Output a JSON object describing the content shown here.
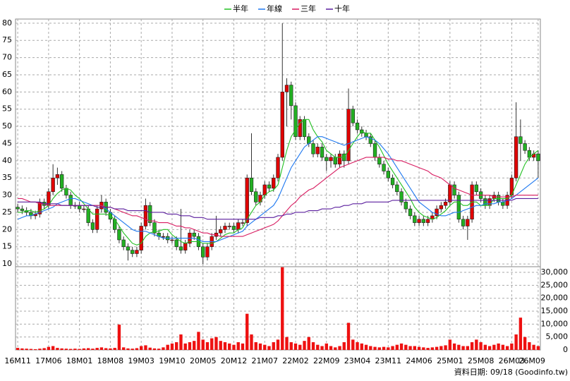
{
  "chart_data": {
    "type": "candlestick",
    "legend": {
      "position": "top"
    },
    "categories": [
      "16M11",
      null,
      null,
      null,
      null,
      null,
      null,
      "17M06",
      null,
      null,
      null,
      null,
      null,
      null,
      "18M01",
      null,
      null,
      null,
      null,
      null,
      null,
      "18M08",
      null,
      null,
      null,
      null,
      null,
      null,
      "19M03",
      null,
      null,
      null,
      null,
      null,
      null,
      "19M10",
      null,
      null,
      null,
      null,
      null,
      null,
      "20M05",
      null,
      null,
      null,
      null,
      null,
      null,
      "20M12",
      null,
      null,
      null,
      null,
      null,
      null,
      "21M07",
      null,
      null,
      null,
      null,
      null,
      null,
      "22M02",
      null,
      null,
      null,
      null,
      null,
      null,
      "22M09",
      null,
      null,
      null,
      null,
      null,
      null,
      "23M04",
      null,
      null,
      null,
      null,
      null,
      null,
      "23M11",
      null,
      null,
      null,
      null,
      null,
      null,
      "24M06",
      null,
      null,
      null,
      null,
      null,
      null,
      "25M01",
      null,
      null,
      null,
      null,
      null,
      null,
      "25M08",
      null,
      null,
      null,
      null,
      null,
      null,
      "26M03",
      null,
      null,
      null,
      null,
      null,
      "26M09"
    ],
    "open": [
      26.5,
      26,
      25.5,
      25,
      24,
      24.5,
      28,
      27,
      31,
      35,
      36,
      32,
      30,
      27,
      27,
      26,
      26,
      22,
      20,
      26,
      28,
      25,
      23,
      20,
      17,
      15,
      14,
      13,
      14,
      21,
      27,
      22,
      19,
      18,
      18,
      17,
      17,
      15,
      14,
      16,
      19,
      18,
      15,
      12,
      15,
      18,
      19,
      20,
      21,
      21,
      20,
      22,
      22,
      35,
      31,
      28,
      30,
      33,
      32,
      35,
      41,
      60,
      62,
      56,
      47,
      52,
      47,
      45,
      42,
      44,
      41,
      40,
      41,
      39,
      42,
      40,
      55,
      51,
      49,
      48,
      47,
      45,
      41,
      39,
      37,
      35,
      33,
      31,
      28,
      26,
      24,
      22,
      23,
      22,
      23,
      24,
      26,
      27,
      28,
      33,
      30,
      23,
      21,
      23,
      33,
      31,
      29,
      27,
      29,
      30,
      28,
      27,
      30,
      35,
      47,
      45,
      43,
      41,
      42
    ],
    "high": [
      27.5,
      27,
      26.5,
      26,
      25.5,
      29,
      29,
      32,
      39,
      38,
      37,
      33,
      31,
      28,
      28,
      27,
      27,
      23,
      27,
      30,
      29,
      26,
      24,
      21,
      18,
      16,
      15,
      15,
      22,
      29,
      28,
      23,
      20,
      19,
      19,
      18,
      18,
      26,
      17,
      20,
      20,
      19,
      16,
      16,
      19,
      24,
      21,
      22,
      22,
      22,
      23,
      23,
      36,
      48,
      32,
      31,
      34,
      34,
      36,
      42,
      80,
      64,
      63,
      57,
      53,
      53,
      48,
      46,
      45,
      45,
      42,
      42,
      42,
      43,
      43,
      61,
      56,
      52,
      50,
      49,
      48,
      46,
      42,
      40,
      38,
      36,
      34,
      32,
      29,
      27,
      25,
      24,
      24,
      24,
      25,
      27,
      28,
      29,
      34,
      34,
      31,
      24,
      24,
      34,
      34,
      32,
      30,
      30,
      31,
      31,
      29,
      31,
      36,
      57,
      52,
      46,
      44,
      43,
      43
    ],
    "low": [
      25,
      24.5,
      24,
      23,
      23,
      23.5,
      26,
      26,
      30,
      33,
      31,
      29,
      26,
      26,
      25,
      25,
      21,
      19,
      19,
      25,
      24,
      22,
      19,
      16,
      14,
      11,
      12,
      12,
      13,
      20,
      21,
      18,
      17,
      17,
      16,
      16,
      14,
      13,
      13,
      15,
      17,
      14,
      10,
      11,
      14,
      17,
      18,
      19,
      20,
      19,
      19,
      21,
      21,
      30,
      27,
      27,
      29,
      31,
      31,
      34,
      40,
      50,
      52,
      46,
      46,
      46,
      44,
      41,
      41,
      40,
      37,
      38,
      38,
      38,
      38,
      39,
      50,
      48,
      47,
      46,
      44,
      40,
      38,
      36,
      34,
      32,
      30,
      27,
      25,
      23,
      21,
      21,
      21,
      21,
      22,
      23,
      25,
      26,
      27,
      29,
      22,
      20,
      17,
      22,
      30,
      28,
      26,
      26,
      28,
      27,
      26,
      26,
      29,
      34,
      40,
      42,
      40,
      40,
      35
    ],
    "close": [
      26,
      25.5,
      25,
      24,
      24.5,
      28,
      27,
      31,
      35,
      36,
      32,
      30,
      27,
      27,
      26,
      26,
      22,
      20,
      26,
      28,
      25,
      23,
      20,
      17,
      15,
      14,
      13,
      14,
      21,
      27,
      22,
      19,
      18,
      18,
      17,
      17,
      15,
      14,
      16,
      19,
      18,
      15,
      12,
      15,
      18,
      19,
      20,
      21,
      21,
      20,
      22,
      22,
      35,
      31,
      28,
      30,
      33,
      32,
      35,
      41,
      60,
      62,
      56,
      47,
      52,
      47,
      45,
      42,
      44,
      41,
      40,
      41,
      39,
      42,
      40,
      55,
      51,
      49,
      48,
      47,
      45,
      41,
      39,
      37,
      35,
      33,
      31,
      28,
      26,
      24,
      22,
      23,
      22,
      23,
      24,
      26,
      27,
      28,
      33,
      30,
      23,
      21,
      23,
      33,
      31,
      29,
      27,
      29,
      30,
      28,
      27,
      30,
      35,
      47,
      45,
      43,
      41,
      42,
      40
    ],
    "up_color": "#e00000",
    "down_color": "#22b022",
    "series": [
      {
        "name": "半年",
        "color": "#22c022",
        "values": [
          25,
          25,
          25.5,
          25.5,
          25,
          25.5,
          26,
          27,
          29,
          30.5,
          31.5,
          32,
          31.5,
          30,
          29,
          27.5,
          26,
          24.5,
          24.5,
          24.5,
          24.5,
          24,
          23,
          21,
          19,
          17.5,
          16,
          15.5,
          16,
          18,
          19,
          19.5,
          19.5,
          20,
          20,
          18.5,
          17.5,
          16.5,
          16,
          16.5,
          16.5,
          16.5,
          16,
          16,
          16,
          16.5,
          17.5,
          18.5,
          19,
          19,
          20,
          20.5,
          23,
          25,
          27,
          28,
          30,
          31,
          31.5,
          33,
          38,
          43,
          47,
          49,
          51,
          52,
          52,
          49,
          47,
          45.5,
          43,
          42,
          41,
          41,
          41,
          43,
          45,
          47,
          48.5,
          48,
          48,
          46,
          44,
          41.5,
          39,
          37,
          35,
          33,
          31,
          29,
          26.5,
          25,
          24,
          23.5,
          23,
          23.5,
          24.5,
          25.5,
          27,
          28,
          28,
          27,
          27,
          28,
          28,
          27,
          27,
          27,
          29,
          29,
          29,
          29,
          30,
          33,
          36,
          39,
          41,
          42,
          43
        ]
      },
      {
        "name": "年線",
        "color": "#1e78f0",
        "values": [
          23,
          23.5,
          24,
          24,
          24.5,
          25,
          25.5,
          26,
          26.5,
          27.5,
          28,
          28.5,
          29,
          29,
          28.5,
          28,
          27.5,
          27,
          27,
          27,
          26,
          25,
          24,
          23,
          22,
          21,
          20,
          19.5,
          19.5,
          19.5,
          19,
          18.5,
          18,
          17.5,
          17.5,
          17.5,
          17.5,
          17.5,
          17.5,
          17.5,
          17.5,
          17,
          16.5,
          16.5,
          16.5,
          16.5,
          17,
          17.5,
          18,
          18.5,
          19,
          19.5,
          21,
          22,
          23,
          24,
          25,
          26,
          27,
          29,
          32,
          35,
          38,
          40,
          42,
          44,
          45,
          46,
          47,
          47,
          46.5,
          46,
          45.5,
          45,
          44.5,
          45,
          45.5,
          46,
          46.5,
          47,
          46.5,
          46,
          45,
          43.5,
          42,
          40,
          38,
          36,
          34,
          32,
          30,
          28,
          27,
          26,
          25,
          24.5,
          24,
          24,
          24.5,
          25,
          25,
          25.5,
          26,
          26.5,
          27,
          27,
          27.5,
          27.5,
          27.5,
          28,
          28,
          28.5,
          29,
          30,
          31,
          32,
          33,
          34,
          35
        ]
      },
      {
        "name": "三年",
        "color": "#d81b60",
        "values": [
          29,
          29,
          28.5,
          28,
          28,
          27.5,
          27.5,
          27,
          27,
          27,
          27,
          27,
          27,
          27,
          27,
          27,
          27,
          27,
          27,
          27,
          26.5,
          26.5,
          26,
          25.5,
          25,
          24.5,
          24,
          24,
          23.5,
          23,
          22.5,
          22.5,
          22,
          22,
          22,
          21.5,
          21,
          21,
          20.5,
          20.5,
          20,
          19.5,
          19,
          19,
          18.5,
          18.5,
          18,
          18,
          18,
          18,
          18,
          18,
          18.5,
          19,
          19.5,
          20,
          20.5,
          21,
          21.5,
          22.5,
          24,
          25.5,
          27,
          28,
          29.5,
          30.5,
          31.5,
          32,
          33,
          34,
          35,
          36,
          37,
          38,
          38.5,
          39,
          39.5,
          40,
          40.5,
          41,
          41,
          41,
          41,
          41,
          40.5,
          40.5,
          40,
          40,
          39.5,
          39,
          38.5,
          38,
          37.5,
          37,
          36,
          35.5,
          35,
          34,
          33,
          32,
          31.5,
          31,
          30.5,
          30,
          30,
          30,
          30,
          30,
          29.5,
          29.5,
          29.5,
          29.5,
          29.5,
          30,
          30,
          30,
          30,
          30,
          30
        ]
      },
      {
        "name": "十年",
        "color": "#5b1f9e",
        "values": [
          28,
          28,
          28,
          28,
          28,
          28,
          27.5,
          27.5,
          27.5,
          27.5,
          27,
          27,
          27,
          27,
          27,
          27,
          27,
          27,
          26.5,
          26.5,
          26.5,
          26.5,
          26,
          26,
          26,
          25.5,
          25.5,
          25.5,
          25.5,
          25.5,
          25,
          25,
          25,
          25,
          24.5,
          24.5,
          24.5,
          24,
          24,
          24,
          23.5,
          23.5,
          23.5,
          23,
          23,
          23,
          23,
          23,
          23,
          23,
          23,
          23,
          23,
          23,
          23,
          23.5,
          23.5,
          23.5,
          23.5,
          24,
          24,
          24.5,
          24.5,
          25,
          25,
          25,
          25.5,
          25.5,
          25.5,
          26,
          26,
          26,
          26.5,
          26.5,
          27,
          27,
          27.5,
          27.5,
          27.5,
          28,
          28,
          28,
          28,
          28,
          28,
          28.5,
          28.5,
          28.5,
          28.5,
          28.5,
          28.5,
          28.5,
          28.5,
          28.5,
          28.5,
          28.5,
          28.5,
          28.5,
          28.5,
          28.5,
          28.5,
          28.5,
          28.5,
          28.5,
          28.5,
          28.5,
          28.5,
          28.5,
          28.5,
          28.5,
          28.5,
          28.5,
          28.5,
          29,
          29,
          29,
          29,
          29,
          29
        ]
      }
    ],
    "ylim": [
      9.2,
      81.2
    ],
    "yticks": [
      10,
      15,
      20,
      25,
      30,
      35,
      40,
      45,
      50,
      55,
      60,
      65,
      70,
      75,
      80
    ],
    "grid": true,
    "volume": {
      "color": "#ee1111",
      "ylim": [
        0,
        32200
      ],
      "yticks": [
        0,
        {
          "value": 5000,
          "label": "5,000"
        },
        {
          "value": 10000,
          "label": "10,000"
        },
        {
          "value": 15000,
          "label": "15,000"
        },
        {
          "value": 20000,
          "label": "20,000"
        },
        {
          "value": 25000,
          "label": "25,000"
        },
        {
          "value": 30000,
          "label": "30,000"
        }
      ],
      "values": [
        800,
        600,
        500,
        400,
        300,
        500,
        700,
        1200,
        1500,
        800,
        600,
        500,
        400,
        500,
        400,
        600,
        700,
        500,
        800,
        1000,
        700,
        600,
        800,
        9800,
        1000,
        600,
        500,
        700,
        1500,
        1800,
        900,
        600,
        500,
        1000,
        2000,
        2500,
        3000,
        6000,
        2500,
        3000,
        3500,
        7000,
        4000,
        3000,
        4500,
        5000,
        3500,
        3000,
        2500,
        2000,
        3000,
        2500,
        14000,
        6000,
        3000,
        2500,
        2000,
        1500,
        3000,
        4000,
        32000,
        5000,
        3000,
        2500,
        2000,
        3500,
        5000,
        3000,
        2000,
        1500,
        2500,
        1500,
        1000,
        1500,
        3000,
        10500,
        4000,
        3000,
        2500,
        2000,
        1500,
        1200,
        1000,
        1200,
        1000,
        1500,
        2000,
        2500,
        2000,
        1500,
        1500,
        1200,
        1000,
        800,
        1000,
        1200,
        1500,
        1800,
        4000,
        2500,
        2000,
        1500,
        1500,
        3000,
        4000,
        3000,
        2000,
        1500,
        2000,
        2500,
        2000,
        1500,
        2500,
        6000,
        12500,
        5000,
        3000,
        2000,
        1500
      ]
    },
    "note": "資料日期: 09/18 (Goodinfo.tw)"
  }
}
